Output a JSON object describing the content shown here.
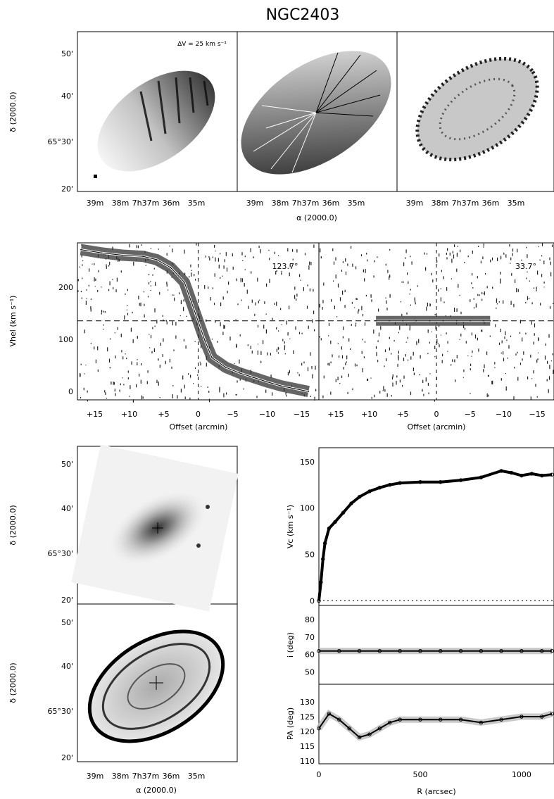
{
  "figure": {
    "title": "NGC2403",
    "top_row": {
      "delta_label": "δ (2000.0)",
      "alpha_label": "α (2000.0)",
      "dec_ticks": [
        "50'",
        "40'",
        "65°30'",
        "20'"
      ],
      "ra_ticks": [
        "39m",
        "38m",
        "7h37m",
        "36m",
        "35m"
      ],
      "velocity_step": "ΔV = 25 km s⁻¹"
    },
    "pv_row": {
      "ylabel": "Vhel (km s⁻¹)",
      "xlabel": "Offset (arcmin)",
      "left_angle": "123.7°",
      "right_angle": "33.7°",
      "y_ticks": [
        "200",
        "100",
        "0"
      ],
      "x_ticks": [
        "+15",
        "+10",
        "+5",
        "0",
        "−5",
        "−10",
        "−15"
      ]
    },
    "maps_bottom": {
      "delta_label": "δ (2000.0)",
      "alpha_label": "α (2000.0)",
      "dec_ticks": [
        "50'",
        "40'",
        "65°30'",
        "20'"
      ],
      "ra_ticks": [
        "39m",
        "38m",
        "7h37m",
        "36m",
        "35m"
      ]
    },
    "rotation_curve": {
      "ylabel": "Vc (km s⁻¹)",
      "y_ticks": [
        "150",
        "100",
        "50",
        "0"
      ]
    },
    "inclination": {
      "ylabel": "i (deg)",
      "y_ticks": [
        "80",
        "70",
        "60",
        "50"
      ]
    },
    "position_angle": {
      "ylabel": "PA (deg)",
      "y_ticks": [
        "130",
        "125",
        "120",
        "115",
        "110"
      ],
      "xlabel": "R (arcsec)",
      "x_ticks": [
        "0",
        "500",
        "1000"
      ]
    }
  },
  "chart_data": [
    {
      "type": "line",
      "panel": "pv-diagram-left",
      "xlabel": "Offset (arcmin)",
      "ylabel": "Vhel (km s⁻¹)",
      "annotation": "123.7°",
      "xlim": [
        17.5,
        -17.5
      ],
      "ylim": [
        -10,
        270
      ],
      "reference_velocity": 131,
      "x": [
        17,
        14,
        11,
        8,
        6,
        4,
        2,
        1,
        0,
        -1,
        -2,
        -4,
        -6,
        -8,
        -10,
        -12,
        -14,
        -16
      ],
      "y": [
        258,
        252,
        248,
        246,
        240,
        226,
        200,
        165,
        130,
        95,
        65,
        48,
        38,
        30,
        22,
        15,
        10,
        5
      ]
    },
    {
      "type": "line",
      "panel": "pv-diagram-right",
      "xlabel": "Offset (arcmin)",
      "annotation": "33.7°",
      "xlim": [
        17.5,
        -17.5
      ],
      "ylim": [
        -10,
        270
      ],
      "reference_velocity": 131,
      "x": [
        9,
        7,
        5,
        3,
        1,
        -1,
        -3,
        -5,
        -7,
        -8
      ],
      "y": [
        131,
        131,
        131,
        131,
        131,
        131,
        131,
        131,
        131,
        131
      ]
    },
    {
      "type": "line",
      "panel": "rotation-curve",
      "ylabel": "Vc (km s⁻¹)",
      "xlim": [
        0,
        1160
      ],
      "ylim": [
        -5,
        165
      ],
      "x": [
        0,
        10,
        20,
        30,
        50,
        80,
        120,
        160,
        200,
        250,
        300,
        350,
        400,
        500,
        600,
        700,
        800,
        900,
        950,
        1000,
        1050,
        1100,
        1150
      ],
      "y": [
        0,
        20,
        45,
        62,
        78,
        85,
        95,
        105,
        112,
        118,
        122,
        125,
        127,
        128,
        128,
        130,
        133,
        140,
        138,
        135,
        137,
        135,
        136
      ]
    },
    {
      "type": "line",
      "panel": "inclination",
      "ylabel": "i (deg)",
      "xlim": [
        0,
        1160
      ],
      "ylim": [
        43,
        88
      ],
      "x": [
        0,
        100,
        200,
        300,
        400,
        500,
        600,
        700,
        800,
        900,
        1000,
        1100,
        1150
      ],
      "y": [
        62,
        62,
        62,
        62,
        62,
        62,
        62,
        62,
        62,
        62,
        62,
        62,
        62
      ]
    },
    {
      "type": "line",
      "panel": "position-angle",
      "ylabel": "PA (deg)",
      "xlabel": "R (arcsec)",
      "xlim": [
        0,
        1160
      ],
      "ylim": [
        109,
        136
      ],
      "x": [
        0,
        50,
        100,
        150,
        200,
        250,
        300,
        350,
        400,
        500,
        600,
        700,
        800,
        900,
        1000,
        1100,
        1150
      ],
      "y": [
        121,
        126,
        124,
        121,
        118,
        119,
        121,
        123,
        124,
        124,
        124,
        124,
        123,
        124,
        125,
        125,
        126
      ]
    }
  ]
}
